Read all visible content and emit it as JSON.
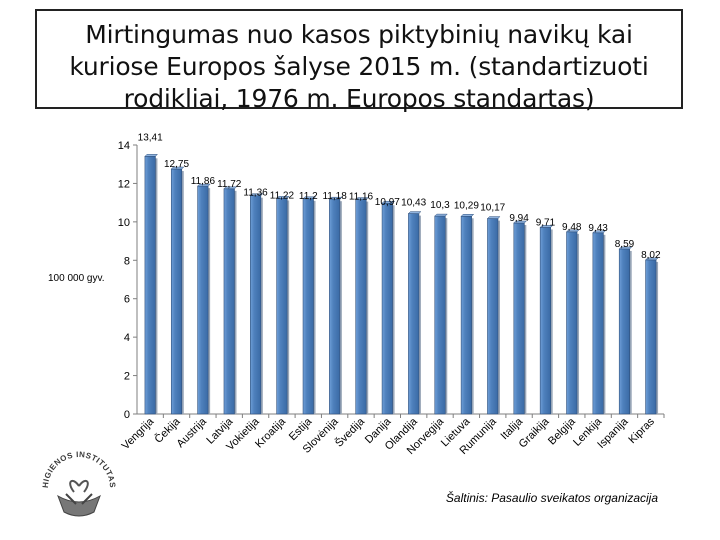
{
  "chart_data": {
    "type": "bar",
    "title": "Mirtingumas nuo kasos piktybinių navikų kai kuriose Europos šalyse 2015 m. (standartizuoti rodikliai, 1976 m. Europos standartas)",
    "ylabel": "100 000 gyv.",
    "xlabel": "",
    "ylim": [
      0,
      14
    ],
    "yticks": [
      0,
      2,
      4,
      6,
      8,
      10,
      12,
      14
    ],
    "grid": false,
    "categories": [
      "Vengrija",
      "Čekija",
      "Austrija",
      "Latvija",
      "Vokietija",
      "Kroatija",
      "Estija",
      "Slovėnija",
      "Švedija",
      "Danija",
      "Olandija",
      "Norvegija",
      "Lietuva",
      "Rumunija",
      "Italija",
      "Graikija",
      "Belgija",
      "Lenkija",
      "Ispanija",
      "Kipras"
    ],
    "values": [
      13.41,
      12.75,
      11.86,
      11.72,
      11.36,
      11.22,
      11.2,
      11.18,
      11.16,
      10.97,
      10.43,
      10.3,
      10.29,
      10.17,
      9.94,
      9.71,
      9.48,
      9.43,
      8.59,
      8.02
    ],
    "data_labels": [
      "13,41",
      "12,75",
      "11,86",
      "11,72",
      "11,36",
      "11,22",
      "11,2",
      "11,18",
      "11,16",
      "10,97",
      "10,43",
      "10,3",
      "10,29",
      "10,17",
      "9,94",
      "9,71",
      "9,48",
      "9,43",
      "8,59",
      "8,02"
    ],
    "bar_color": "#4f81bd",
    "bar_edge_color": "#2f4f7a"
  },
  "source": "Šaltinis: Pasaulio sveikatos organizacija",
  "logo": {
    "icon": "higienos-institutas-logo",
    "text": "HIGIENOS INSTITUTAS"
  }
}
